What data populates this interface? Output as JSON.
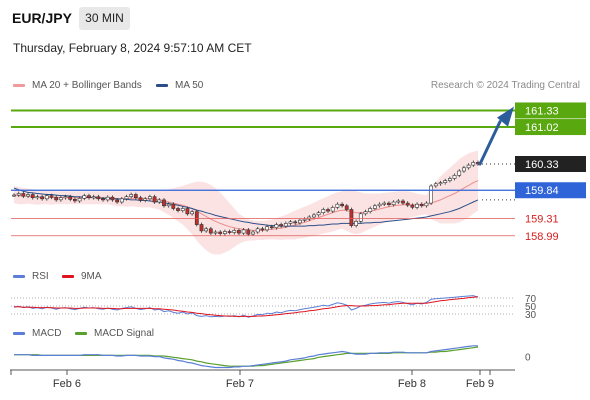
{
  "header": {
    "symbol": "EUR/JPY",
    "timeframe": "30 MIN",
    "datetime": "Thursday, February 8, 2024 9:57:10 AM CET"
  },
  "credit": "Research © 2024 Trading Central",
  "legends": {
    "price": [
      {
        "label": "MA 20 + Bollinger Bands",
        "color": "#f19a9a"
      },
      {
        "label": "MA 50",
        "color": "#2c4f8a"
      }
    ],
    "rsi": [
      {
        "label": "RSI",
        "color": "#5b7fd6"
      },
      {
        "label": "9MA",
        "color": "#e0141e"
      }
    ],
    "macd": [
      {
        "label": "MACD",
        "color": "#5b7fd6"
      },
      {
        "label": "MACD Signal",
        "color": "#5aa02c"
      }
    ]
  },
  "colors": {
    "support_resistance": "#2f63d8",
    "target": "#59a80f",
    "stop": "#e05a5a",
    "last_price": "#222222",
    "arrow": "#2c5d9a",
    "bull_candle": "#ffffff",
    "bear_candle": "#c0302b"
  },
  "chart_data": [
    {
      "type": "candlestick",
      "title": "EUR/JPY 30 MIN",
      "x_ticks": [
        "Feb 6",
        "Feb 7",
        "Feb 8",
        "Feb 9"
      ],
      "ylim": [
        158.5,
        161.6
      ],
      "levels": [
        {
          "value": 161.33,
          "label": "161.33",
          "kind": "target"
        },
        {
          "value": 161.02,
          "label": "161.02",
          "kind": "target"
        },
        {
          "value": 160.33,
          "label": "160.33",
          "kind": "last"
        },
        {
          "value": 159.84,
          "label": "159.84",
          "kind": "pivot"
        },
        {
          "value": 159.31,
          "label": "159.31",
          "kind": "stop"
        },
        {
          "value": 158.99,
          "label": "158.99",
          "kind": "stop"
        }
      ],
      "close": [
        159.75,
        159.78,
        159.73,
        159.76,
        159.7,
        159.72,
        159.68,
        159.74,
        159.71,
        159.66,
        159.7,
        159.72,
        159.67,
        159.64,
        159.69,
        159.74,
        159.7,
        159.72,
        159.68,
        159.66,
        159.71,
        159.66,
        159.62,
        159.68,
        159.72,
        159.76,
        159.7,
        159.65,
        159.68,
        159.72,
        159.62,
        159.66,
        159.55,
        159.58,
        159.5,
        159.46,
        159.5,
        159.4,
        159.44,
        159.2,
        159.08,
        159.12,
        159.04,
        159.06,
        159.03,
        159.07,
        159.05,
        159.09,
        159.04,
        159.1,
        159.02,
        159.06,
        159.12,
        159.1,
        159.16,
        159.14,
        159.2,
        159.17,
        159.22,
        159.25,
        159.23,
        159.28,
        159.3,
        159.34,
        159.38,
        159.42,
        159.48,
        159.45,
        159.52,
        159.58,
        159.55,
        159.48,
        159.18,
        159.26,
        159.4,
        159.44,
        159.5,
        159.55,
        159.58,
        159.6,
        159.57,
        159.62,
        159.64,
        159.6,
        159.56,
        159.52,
        159.58,
        159.55,
        159.6,
        159.92,
        159.96,
        159.98,
        160.02,
        160.06,
        160.12,
        160.2,
        160.26,
        160.31,
        160.36,
        160.33
      ],
      "ma20": [
        159.76,
        159.74,
        159.73,
        159.73,
        159.72,
        159.71,
        159.71,
        159.71,
        159.7,
        159.7,
        159.7,
        159.7,
        159.7,
        159.7,
        159.7,
        159.7,
        159.7,
        159.7,
        159.7,
        159.7,
        159.7,
        159.69,
        159.68,
        159.68,
        159.68,
        159.69,
        159.69,
        159.68,
        159.68,
        159.68,
        159.67,
        159.66,
        159.64,
        159.62,
        159.6,
        159.58,
        159.56,
        159.53,
        159.5,
        159.45,
        159.4,
        159.35,
        159.3,
        159.26,
        159.22,
        159.19,
        159.16,
        159.14,
        159.12,
        159.11,
        159.1,
        159.09,
        159.09,
        159.09,
        159.1,
        159.11,
        159.12,
        159.13,
        159.15,
        159.17,
        159.19,
        159.22,
        159.24,
        159.27,
        159.3,
        159.33,
        159.36,
        159.39,
        159.42,
        159.45,
        159.47,
        159.46,
        159.44,
        159.42,
        159.42,
        159.43,
        159.45,
        159.47,
        159.49,
        159.51,
        159.53,
        159.55,
        159.56,
        159.57,
        159.57,
        159.57,
        159.57,
        159.57,
        159.57,
        159.6,
        159.63,
        159.66,
        159.7,
        159.74,
        159.78,
        159.83,
        159.88,
        159.93,
        159.98,
        160.02
      ],
      "bb_upper": [
        159.92,
        159.9,
        159.88,
        159.87,
        159.86,
        159.85,
        159.84,
        159.84,
        159.83,
        159.82,
        159.82,
        159.82,
        159.82,
        159.82,
        159.82,
        159.82,
        159.82,
        159.82,
        159.82,
        159.82,
        159.82,
        159.82,
        159.82,
        159.82,
        159.83,
        159.84,
        159.85,
        159.84,
        159.84,
        159.84,
        159.84,
        159.84,
        159.85,
        159.86,
        159.88,
        159.9,
        159.92,
        159.95,
        159.98,
        160.0,
        160.0,
        159.98,
        159.94,
        159.88,
        159.8,
        159.7,
        159.6,
        159.5,
        159.4,
        159.34,
        159.3,
        159.28,
        159.27,
        159.27,
        159.28,
        159.3,
        159.32,
        159.35,
        159.38,
        159.42,
        159.46,
        159.5,
        159.53,
        159.57,
        159.61,
        159.65,
        159.69,
        159.73,
        159.77,
        159.8,
        159.82,
        159.84,
        159.84,
        159.82,
        159.8,
        159.78,
        159.78,
        159.78,
        159.78,
        159.79,
        159.8,
        159.81,
        159.82,
        159.82,
        159.82,
        159.8,
        159.78,
        159.76,
        159.75,
        159.9,
        160.0,
        160.1,
        160.18,
        160.26,
        160.34,
        160.42,
        160.48,
        160.53,
        160.56,
        160.58
      ],
      "bb_lower": [
        159.6,
        159.58,
        159.58,
        159.59,
        159.58,
        159.57,
        159.58,
        159.58,
        159.57,
        159.58,
        159.58,
        159.58,
        159.58,
        159.58,
        159.58,
        159.58,
        159.58,
        159.58,
        159.58,
        159.58,
        159.58,
        159.56,
        159.54,
        159.54,
        159.53,
        159.54,
        159.53,
        159.52,
        159.52,
        159.52,
        159.5,
        159.48,
        159.43,
        159.38,
        159.32,
        159.26,
        159.2,
        159.11,
        159.02,
        158.9,
        158.8,
        158.72,
        158.66,
        158.64,
        158.64,
        158.68,
        158.72,
        158.78,
        158.84,
        158.88,
        158.9,
        158.9,
        158.91,
        158.91,
        158.92,
        158.92,
        158.92,
        158.91,
        158.92,
        158.92,
        158.92,
        158.94,
        158.95,
        158.97,
        158.99,
        159.01,
        159.03,
        159.05,
        159.07,
        159.1,
        159.12,
        159.08,
        159.04,
        159.02,
        159.04,
        159.08,
        159.12,
        159.16,
        159.2,
        159.23,
        159.26,
        159.29,
        159.3,
        159.32,
        159.32,
        159.34,
        159.36,
        159.38,
        159.39,
        159.3,
        159.26,
        159.22,
        159.22,
        159.22,
        159.22,
        159.24,
        159.28,
        159.33,
        159.4,
        159.46
      ],
      "ma50": [
        159.88,
        159.85,
        159.82,
        159.8,
        159.79,
        159.78,
        159.77,
        159.76,
        159.76,
        159.75,
        159.74,
        159.74,
        159.73,
        159.72,
        159.72,
        159.71,
        159.71,
        159.7,
        159.7,
        159.69,
        159.69,
        159.68,
        159.68,
        159.67,
        159.67,
        159.66,
        159.66,
        159.65,
        159.65,
        159.64,
        159.63,
        159.62,
        159.61,
        159.59,
        159.58,
        159.56,
        159.54,
        159.52,
        159.5,
        159.47,
        159.45,
        159.42,
        159.4,
        159.37,
        159.35,
        159.33,
        159.31,
        159.29,
        159.27,
        159.25,
        159.24,
        159.22,
        159.21,
        159.2,
        159.19,
        159.18,
        159.18,
        159.17,
        159.17,
        159.17,
        159.17,
        159.17,
        159.17,
        159.18,
        159.18,
        159.19,
        159.19,
        159.2,
        159.21,
        159.21,
        159.22,
        159.22,
        159.22,
        159.22,
        159.22,
        159.23,
        159.23,
        159.24,
        159.24,
        159.25,
        159.26,
        159.27,
        159.28,
        159.29,
        159.3,
        159.31,
        159.32,
        159.33,
        159.34,
        159.36,
        159.38,
        159.4,
        159.42,
        159.44,
        159.47,
        159.5,
        159.54,
        159.58,
        159.62,
        159.66
      ]
    },
    {
      "type": "line",
      "title": "RSI",
      "ylim": [
        0,
        100
      ],
      "y_ticks": [
        70,
        50,
        30
      ],
      "series": [
        {
          "name": "RSI",
          "values": [
            47,
            49,
            46,
            48,
            44,
            46,
            43,
            47,
            45,
            42,
            45,
            46,
            43,
            41,
            44,
            47,
            45,
            46,
            43,
            42,
            45,
            42,
            40,
            44,
            46,
            48,
            44,
            41,
            43,
            46,
            40,
            42,
            36,
            38,
            34,
            32,
            35,
            30,
            33,
            26,
            24,
            26,
            23,
            24,
            23,
            25,
            24,
            26,
            23,
            27,
            22,
            25,
            29,
            28,
            32,
            31,
            35,
            33,
            37,
            39,
            38,
            41,
            43,
            45,
            47,
            49,
            52,
            50,
            54,
            58,
            56,
            52,
            40,
            44,
            50,
            52,
            55,
            57,
            58,
            59,
            57,
            60,
            61,
            59,
            56,
            53,
            57,
            55,
            59,
            67,
            68,
            69,
            70,
            71,
            72,
            73,
            74,
            75,
            76,
            72
          ]
        },
        {
          "name": "9MA",
          "values": [
            48,
            48,
            47,
            47,
            47,
            46,
            46,
            46,
            46,
            45,
            45,
            45,
            45,
            44,
            44,
            45,
            45,
            45,
            45,
            44,
            44,
            44,
            43,
            43,
            44,
            44,
            44,
            44,
            44,
            44,
            43,
            43,
            42,
            41,
            40,
            38,
            37,
            35,
            34,
            32,
            31,
            29,
            28,
            27,
            26,
            25,
            25,
            24,
            24,
            24,
            24,
            24,
            25,
            25,
            26,
            27,
            28,
            29,
            31,
            32,
            33,
            35,
            36,
            38,
            39,
            41,
            43,
            44,
            46,
            48,
            50,
            51,
            51,
            50,
            50,
            50,
            51,
            51,
            52,
            53,
            53,
            55,
            56,
            57,
            57,
            57,
            57,
            57,
            57,
            59,
            61,
            63,
            64,
            66,
            67,
            68,
            69,
            71,
            72,
            73
          ]
        }
      ]
    },
    {
      "type": "line",
      "title": "MACD",
      "ylim": [
        -0.24,
        0.26
      ],
      "y_ticks": [
        0
      ],
      "series": [
        {
          "name": "MACD",
          "values": [
            0.03,
            0.03,
            0.03,
            0.03,
            0.02,
            0.02,
            0.02,
            0.02,
            0.02,
            0.02,
            0.02,
            0.02,
            0.02,
            0.02,
            0.02,
            0.03,
            0.03,
            0.03,
            0.03,
            0.02,
            0.02,
            0.02,
            0.01,
            0.01,
            0.02,
            0.02,
            0.02,
            0.01,
            0.01,
            0.01,
            0.0,
            0.0,
            -0.02,
            -0.03,
            -0.04,
            -0.06,
            -0.07,
            -0.09,
            -0.1,
            -0.12,
            -0.14,
            -0.15,
            -0.16,
            -0.17,
            -0.17,
            -0.17,
            -0.17,
            -0.16,
            -0.16,
            -0.15,
            -0.15,
            -0.14,
            -0.13,
            -0.12,
            -0.11,
            -0.1,
            -0.09,
            -0.08,
            -0.07,
            -0.05,
            -0.04,
            -0.03,
            -0.02,
            0.0,
            0.01,
            0.03,
            0.04,
            0.05,
            0.06,
            0.07,
            0.08,
            0.07,
            0.05,
            0.04,
            0.04,
            0.04,
            0.05,
            0.05,
            0.06,
            0.06,
            0.06,
            0.07,
            0.07,
            0.07,
            0.06,
            0.06,
            0.06,
            0.06,
            0.06,
            0.08,
            0.09,
            0.1,
            0.11,
            0.12,
            0.13,
            0.14,
            0.15,
            0.16,
            0.17,
            0.17
          ]
        },
        {
          "name": "MACD Signal",
          "values": [
            0.03,
            0.03,
            0.03,
            0.03,
            0.03,
            0.03,
            0.02,
            0.02,
            0.02,
            0.02,
            0.02,
            0.02,
            0.02,
            0.02,
            0.02,
            0.02,
            0.02,
            0.02,
            0.02,
            0.02,
            0.02,
            0.02,
            0.02,
            0.02,
            0.02,
            0.02,
            0.02,
            0.02,
            0.02,
            0.02,
            0.01,
            0.01,
            0.01,
            0.0,
            -0.01,
            -0.02,
            -0.03,
            -0.04,
            -0.05,
            -0.07,
            -0.08,
            -0.1,
            -0.11,
            -0.12,
            -0.13,
            -0.14,
            -0.15,
            -0.15,
            -0.15,
            -0.15,
            -0.15,
            -0.15,
            -0.14,
            -0.14,
            -0.13,
            -0.12,
            -0.11,
            -0.1,
            -0.09,
            -0.08,
            -0.07,
            -0.06,
            -0.05,
            -0.04,
            -0.03,
            -0.01,
            0.0,
            0.01,
            0.02,
            0.03,
            0.04,
            0.05,
            0.05,
            0.05,
            0.05,
            0.05,
            0.05,
            0.05,
            0.05,
            0.05,
            0.05,
            0.06,
            0.06,
            0.06,
            0.06,
            0.06,
            0.06,
            0.06,
            0.06,
            0.07,
            0.07,
            0.08,
            0.08,
            0.09,
            0.1,
            0.11,
            0.12,
            0.13,
            0.14,
            0.15
          ]
        }
      ]
    }
  ]
}
